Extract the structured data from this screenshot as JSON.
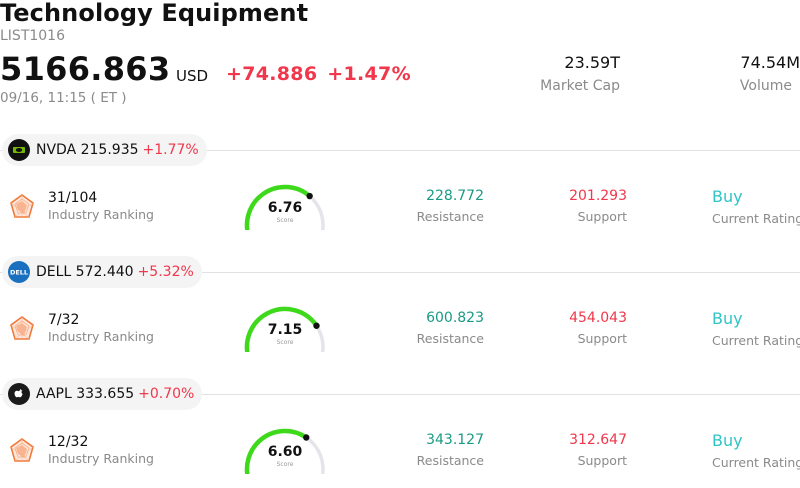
{
  "header": {
    "title": "Technology Equipment",
    "code": "LIST1016",
    "price": "5166.863",
    "currency": "USD",
    "change": "+74.886",
    "change_pct": "+1.47%",
    "time": "09/16, 11:15  ( ET )",
    "market_cap_value": "23.59T",
    "market_cap_label": "Market Cap",
    "volume_value": "74.54M",
    "volume_label": "Volume"
  },
  "colors": {
    "up": "#f0374b",
    "resistance": "#1a9a84",
    "rating": "#30c4c4",
    "gauge": "#3ed91a",
    "track": "#e4e4ea"
  },
  "stocks": [
    {
      "ticker_price": "NVDA 215.935",
      "pct": "+1.77%",
      "logo": "nvidia-logo-icon",
      "rank": "31/104",
      "rank_label": "Industry Ranking",
      "score": "6.76",
      "score_label": "Score",
      "score_value": 6.76,
      "resistance": "228.772",
      "resistance_label": "Resistance",
      "support": "201.293",
      "support_label": "Support",
      "rating": "Buy",
      "rating_label": "Current Rating"
    },
    {
      "ticker_price": "DELL 572.440",
      "pct": "+5.32%",
      "logo": "dell-logo-icon",
      "rank": "7/32",
      "rank_label": "Industry Ranking",
      "score": "7.15",
      "score_label": "Score",
      "score_value": 7.15,
      "resistance": "600.823",
      "resistance_label": "Resistance",
      "support": "454.043",
      "support_label": "Support",
      "rating": "Buy",
      "rating_label": "Current Rating"
    },
    {
      "ticker_price": "AAPL 333.655",
      "pct": "+0.70%",
      "logo": "apple-logo-icon",
      "rank": "12/32",
      "rank_label": "Industry Ranking",
      "score": "6.60",
      "score_label": "Score",
      "score_value": 6.6,
      "resistance": "343.127",
      "resistance_label": "Resistance",
      "support": "312.647",
      "support_label": "Support",
      "rating": "Buy",
      "rating_label": "Current Rating"
    }
  ]
}
